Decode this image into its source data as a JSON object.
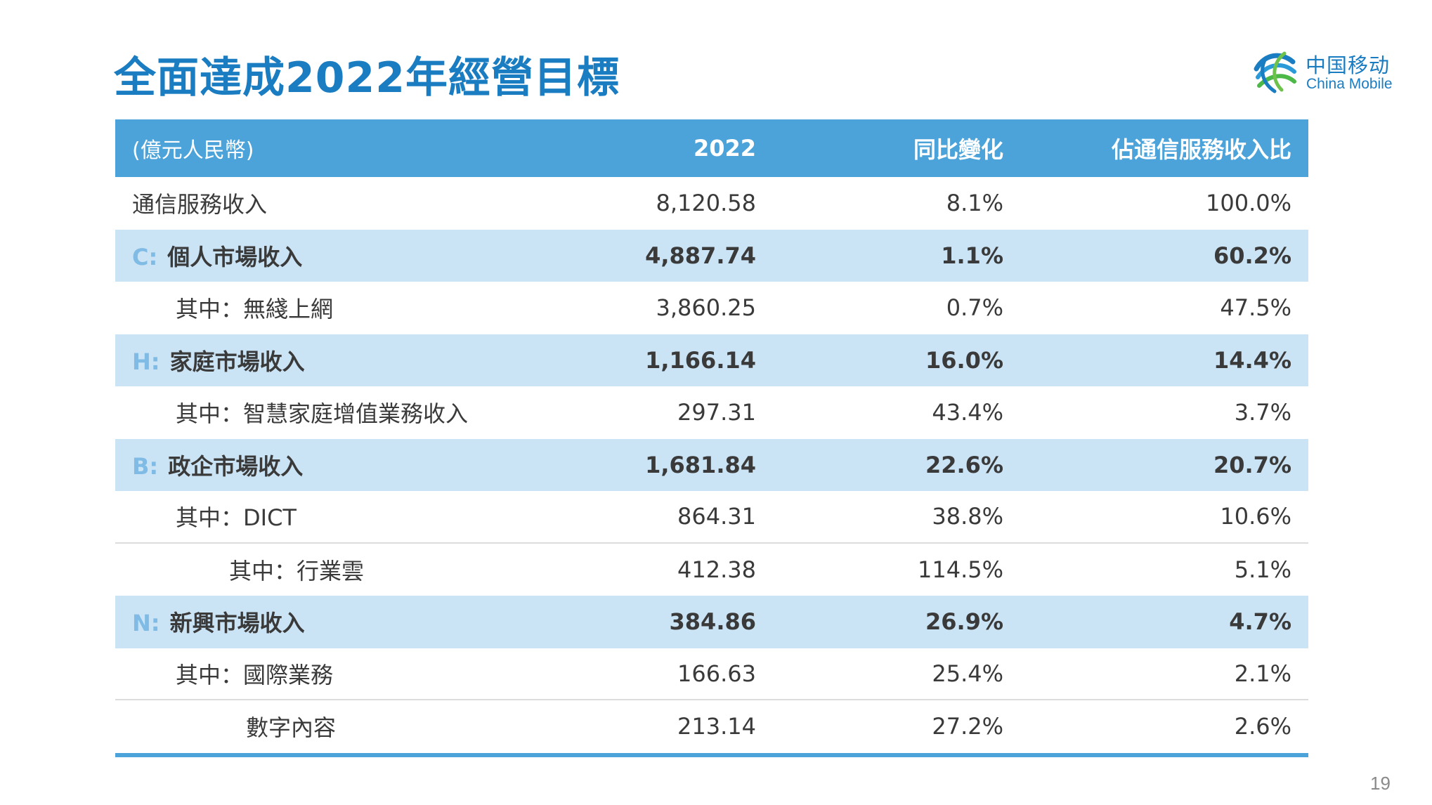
{
  "title": "全面達成2022年經營目標",
  "logo": {
    "name_cn": "中国移动",
    "name_en": "China Mobile",
    "icon": "china-mobile-logo-icon"
  },
  "colors": {
    "title": "#1a7cc1",
    "header_bg": "#4ba3da",
    "highlight_row_bg": "#cbe4f5",
    "prefix": "#7fbbe4",
    "text": "#3a3a3a"
  },
  "table": {
    "headers": {
      "label": "(億元人民幣)",
      "value": "2022",
      "yoy": "同比變化",
      "share": "佔通信服務收入比"
    },
    "rows": [
      {
        "prefix": "",
        "label": "通信服務收入",
        "value": "8,120.58",
        "yoy": "8.1%",
        "share": "100.0%"
      },
      {
        "prefix": "C:",
        "label": "個人市場收入",
        "value": "4,887.74",
        "yoy": "1.1%",
        "share": "60.2%"
      },
      {
        "prefix": "",
        "label": "其中：無綫上網",
        "value": "3,860.25",
        "yoy": "0.7%",
        "share": "47.5%"
      },
      {
        "prefix": "H:",
        "label": "家庭市場收入",
        "value": "1,166.14",
        "yoy": "16.0%",
        "share": "14.4%"
      },
      {
        "prefix": "",
        "label": "其中：智慧家庭增值業務收入",
        "value": "297.31",
        "yoy": "43.4%",
        "share": "3.7%"
      },
      {
        "prefix": "B:",
        "label": "政企市場收入",
        "value": "1,681.84",
        "yoy": "22.6%",
        "share": "20.7%"
      },
      {
        "prefix": "",
        "label": "其中：DICT",
        "value": "864.31",
        "yoy": "38.8%",
        "share": "10.6%"
      },
      {
        "prefix": "",
        "label": "其中：行業雲",
        "value": "412.38",
        "yoy": "114.5%",
        "share": "5.1%"
      },
      {
        "prefix": "N:",
        "label": "新興市場收入",
        "value": "384.86",
        "yoy": "26.9%",
        "share": "4.7%"
      },
      {
        "prefix": "",
        "label": "其中：國際業務",
        "value": "166.63",
        "yoy": "25.4%",
        "share": "2.1%"
      },
      {
        "prefix": "",
        "label": "數字內容",
        "value": "213.14",
        "yoy": "27.2%",
        "share": "2.6%"
      }
    ]
  },
  "page_number": "19"
}
